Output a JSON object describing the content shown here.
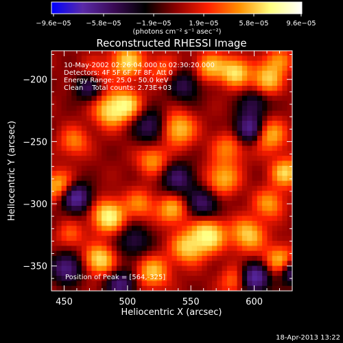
{
  "chart_data": {
    "type": "heatmap",
    "title": "Reconstructed RHESSI Image",
    "xlabel": "Heliocentric X (arcsec)",
    "ylabel": "Heliocentric Y (arcsec)",
    "xlim": [
      440,
      630
    ],
    "ylim": [
      -370,
      -177
    ],
    "xticks": [
      450,
      500,
      550,
      600
    ],
    "yticks": [
      -350,
      -300,
      -250,
      -200
    ],
    "xtick_labels": [
      "450",
      "500",
      "550",
      "600"
    ],
    "ytick_labels": [
      "−350",
      "−300",
      "−250",
      "−200"
    ],
    "colorbar": {
      "range": [
        -9.6e-05,
        9.6e-05
      ],
      "tick_labels": [
        "−9.6e−05",
        "−5.8e−05",
        "−1.9e−05",
        "1.9e−05",
        "5.8e−05",
        "9.6e−05"
      ],
      "unit_label": "(photons cm⁻² s⁻¹ asec⁻²)",
      "stops": [
        "#0000ff",
        "#5a2aa8",
        "#3a0a54",
        "#000000",
        "#8e0000",
        "#ff2000",
        "#ff9000",
        "#ffff80",
        "#ffffff"
      ]
    },
    "annotations": [
      "10-May-2002 02:26:04.000 to 02:30:20.000",
      "Detectors: 4F 5F 6F 7F 8F, Att 0",
      "Energy Range: 25.0 - 50.0 keV",
      "Clean    Total counts: 2.73E+03"
    ],
    "peak_label": "Position of Peak = [564,-325]",
    "peak": [
      564,
      -325
    ],
    "sources": [
      {
        "x": 474,
        "y": -198,
        "v": 0.5,
        "s": 9
      },
      {
        "x": 487,
        "y": -225,
        "v": 0.9,
        "s": 9
      },
      {
        "x": 500,
        "y": -186,
        "v": 0.8,
        "s": 9
      },
      {
        "x": 500,
        "y": -220,
        "v": 0.7,
        "s": 8
      },
      {
        "x": 528,
        "y": -192,
        "v": 0.4,
        "s": 8
      },
      {
        "x": 565,
        "y": -190,
        "v": 0.7,
        "s": 8
      },
      {
        "x": 585,
        "y": -194,
        "v": 0.9,
        "s": 8
      },
      {
        "x": 610,
        "y": -200,
        "v": 0.8,
        "s": 8
      },
      {
        "x": 620,
        "y": -185,
        "v": 0.6,
        "s": 7
      },
      {
        "x": 540,
        "y": -240,
        "v": 0.8,
        "s": 9
      },
      {
        "x": 520,
        "y": -265,
        "v": 0.6,
        "s": 8
      },
      {
        "x": 458,
        "y": -250,
        "v": 0.5,
        "s": 8
      },
      {
        "x": 580,
        "y": -255,
        "v": 0.5,
        "s": 9
      },
      {
        "x": 575,
        "y": -280,
        "v": 0.7,
        "s": 9
      },
      {
        "x": 612,
        "y": -245,
        "v": 0.7,
        "s": 9
      },
      {
        "x": 625,
        "y": -275,
        "v": 0.8,
        "s": 8
      },
      {
        "x": 445,
        "y": -285,
        "v": 0.7,
        "s": 8
      },
      {
        "x": 485,
        "y": -310,
        "v": 1.0,
        "s": 9
      },
      {
        "x": 478,
        "y": -345,
        "v": 0.9,
        "s": 8
      },
      {
        "x": 510,
        "y": -300,
        "v": 0.5,
        "s": 8
      },
      {
        "x": 535,
        "y": -305,
        "v": 0.7,
        "s": 8
      },
      {
        "x": 548,
        "y": -335,
        "v": 0.8,
        "s": 9
      },
      {
        "x": 564,
        "y": -325,
        "v": 1.0,
        "s": 9
      },
      {
        "x": 595,
        "y": -325,
        "v": 0.8,
        "s": 9
      },
      {
        "x": 612,
        "y": -300,
        "v": 0.6,
        "s": 8
      },
      {
        "x": 620,
        "y": -345,
        "v": 0.7,
        "s": 8
      },
      {
        "x": 520,
        "y": -355,
        "v": 0.7,
        "s": 9
      },
      {
        "x": 585,
        "y": -362,
        "v": 0.5,
        "s": 8
      },
      {
        "x": 455,
        "y": -325,
        "v": 0.4,
        "s": 7
      },
      {
        "x": 470,
        "y": -205,
        "v": -0.8,
        "s": 8
      },
      {
        "x": 460,
        "y": -295,
        "v": -0.9,
        "s": 8
      },
      {
        "x": 452,
        "y": -352,
        "v": -0.8,
        "s": 8
      },
      {
        "x": 495,
        "y": -365,
        "v": -0.7,
        "s": 8
      },
      {
        "x": 596,
        "y": -240,
        "v": -0.9,
        "s": 8
      },
      {
        "x": 600,
        "y": -360,
        "v": -1.0,
        "s": 8
      },
      {
        "x": 630,
        "y": -355,
        "v": -0.7,
        "s": 7
      },
      {
        "x": 518,
        "y": -238,
        "v": -0.6,
        "s": 9
      },
      {
        "x": 505,
        "y": -330,
        "v": -0.5,
        "s": 9
      },
      {
        "x": 560,
        "y": -300,
        "v": -0.6,
        "s": 9
      },
      {
        "x": 545,
        "y": -205,
        "v": -0.5,
        "s": 9
      },
      {
        "x": 600,
        "y": -220,
        "v": -0.5,
        "s": 8
      },
      {
        "x": 540,
        "y": -280,
        "v": -0.6,
        "s": 9
      }
    ]
  },
  "footer": {
    "timestamp": "18-Apr-2013 13:22"
  }
}
